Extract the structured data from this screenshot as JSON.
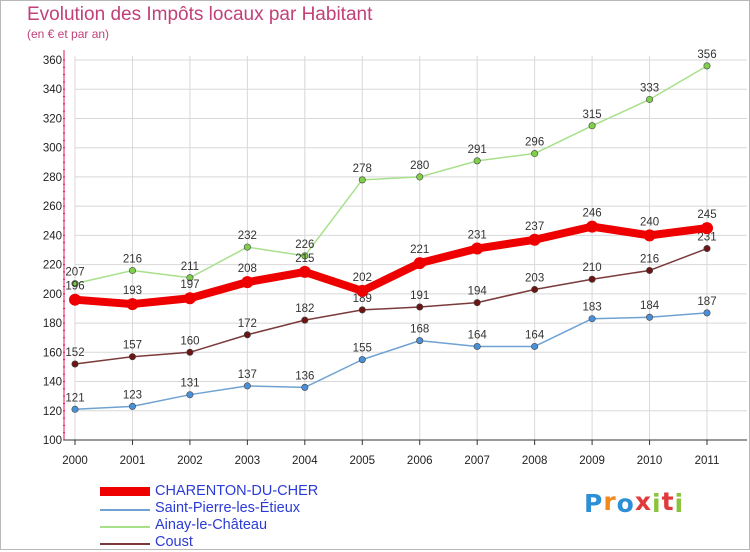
{
  "header": {
    "title": "Evolution des Impôts locaux par Habitant",
    "subtitle": "(en € et par an)"
  },
  "brand": {
    "logo_text": "Proxiti"
  },
  "colors": {
    "title": "#c2407a",
    "axis": "#e4185a",
    "grid": "#d8d8d8",
    "legend_text": "#2b3bd6"
  },
  "chart_data": {
    "type": "line",
    "title": "Evolution des Impôts locaux par Habitant",
    "subtitle": "(en € et par an)",
    "xlabel": "",
    "ylabel": "",
    "x": [
      2000,
      2001,
      2002,
      2003,
      2004,
      2005,
      2006,
      2007,
      2008,
      2009,
      2010,
      2011
    ],
    "ylim": [
      100,
      360
    ],
    "yticks": [
      100,
      120,
      140,
      160,
      180,
      200,
      220,
      240,
      260,
      280,
      300,
      320,
      340,
      360
    ],
    "grid": true,
    "legend_position": "bottom-left",
    "series": [
      {
        "name": "CHARENTON-DU-CHER",
        "color": "#ee0000",
        "marker_color": "#ee0000",
        "width": "thick",
        "values": [
          196,
          193,
          197,
          208,
          215,
          202,
          221,
          231,
          237,
          246,
          240,
          245
        ]
      },
      {
        "name": "Saint-Pierre-les-Étieux",
        "color": "#6fa2d2",
        "marker_color": "#4a90d9",
        "width": "thin",
        "values": [
          121,
          123,
          131,
          137,
          136,
          155,
          168,
          164,
          164,
          183,
          184,
          187
        ]
      },
      {
        "name": "Ainay-le-Château",
        "color": "#a8e08a",
        "marker_color": "#7ed04a",
        "width": "thin",
        "values": [
          207,
          216,
          211,
          232,
          226,
          278,
          280,
          291,
          296,
          315,
          333,
          356
        ]
      },
      {
        "name": "Coust",
        "color": "#7a3a3a",
        "marker_color": "#6b1515",
        "width": "thin",
        "values": [
          152,
          157,
          160,
          172,
          182,
          189,
          191,
          194,
          203,
          210,
          216,
          231
        ]
      }
    ]
  }
}
